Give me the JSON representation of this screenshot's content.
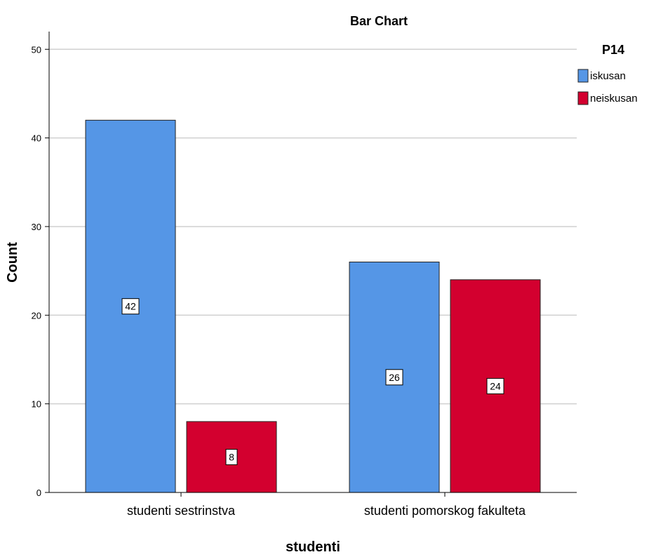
{
  "chart_data": {
    "type": "bar",
    "title": "Bar Chart",
    "xlabel": "studenti",
    "ylabel": "Count",
    "categories": [
      "studenti sestrinstva",
      "studenti pomorskog fakulteta"
    ],
    "series": [
      {
        "name": "iskusan",
        "values": [
          42,
          26
        ],
        "color": "#5596e6"
      },
      {
        "name": "neiskusan",
        "values": [
          8,
          24
        ],
        "color": "#d3002f"
      }
    ],
    "ylim": [
      0,
      52
    ],
    "yticks": [
      0,
      10,
      20,
      30,
      40,
      50
    ],
    "grid": true,
    "legend": {
      "title": "P14",
      "position": "top-right"
    },
    "data_labels": true
  }
}
